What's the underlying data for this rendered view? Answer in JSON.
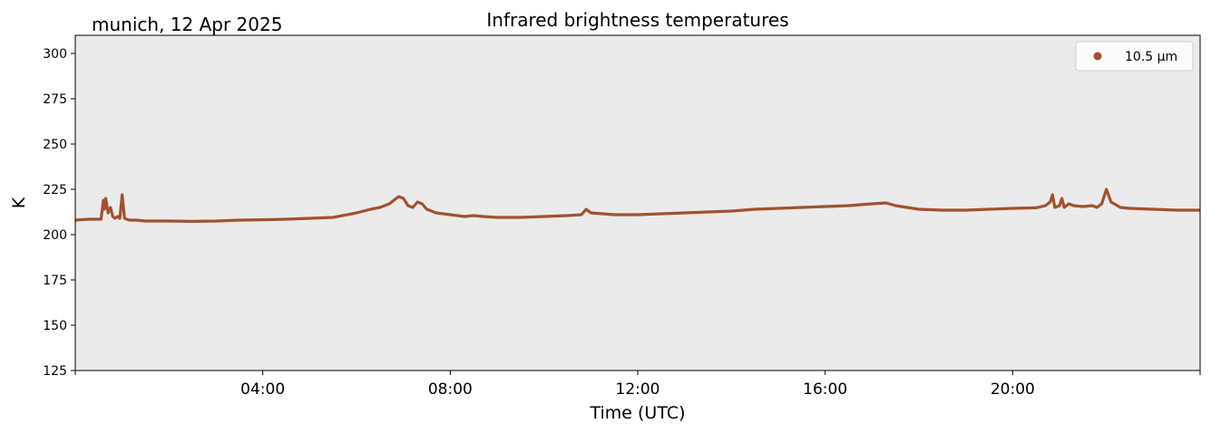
{
  "chart_data": {
    "type": "line",
    "title": "Infrared brightness temperatures",
    "subtitle": "munich, 12 Apr 2025",
    "xlabel": "Time (UTC)",
    "ylabel": "K",
    "xlim_hours": [
      0,
      24
    ],
    "ylim": [
      125,
      310
    ],
    "y_ticks": [
      125,
      150,
      175,
      200,
      225,
      250,
      275,
      300
    ],
    "x_ticks": [
      {
        "hour": 4,
        "label": "04:00"
      },
      {
        "hour": 8,
        "label": "08:00"
      },
      {
        "hour": 12,
        "label": "12:00"
      },
      {
        "hour": 16,
        "label": "16:00"
      },
      {
        "hour": 20,
        "label": "20:00"
      }
    ],
    "grid": false,
    "background_color": "#ebebeb",
    "legend": {
      "position": "top-right",
      "entries": [
        "10.5 µm"
      ]
    },
    "series": [
      {
        "name": "10.5 µm",
        "color": "#a0522d",
        "x_hours": [
          0.0,
          0.3,
          0.55,
          0.6,
          0.62,
          0.65,
          0.7,
          0.75,
          0.8,
          0.85,
          0.9,
          0.95,
          1.0,
          1.05,
          1.1,
          1.15,
          1.3,
          1.5,
          2.0,
          2.5,
          3.0,
          3.5,
          4.0,
          4.5,
          5.0,
          5.5,
          6.0,
          6.3,
          6.5,
          6.7,
          6.8,
          6.9,
          7.0,
          7.1,
          7.2,
          7.3,
          7.4,
          7.5,
          7.7,
          8.0,
          8.3,
          8.5,
          8.7,
          9.0,
          9.5,
          10.0,
          10.5,
          10.8,
          10.9,
          11.0,
          11.5,
          12.0,
          12.5,
          13.0,
          13.5,
          14.0,
          14.5,
          15.0,
          15.5,
          16.0,
          16.5,
          17.0,
          17.3,
          17.5,
          18.0,
          18.5,
          19.0,
          19.5,
          20.0,
          20.5,
          20.7,
          20.8,
          20.85,
          20.9,
          21.0,
          21.05,
          21.1,
          21.2,
          21.3,
          21.5,
          21.7,
          21.8,
          21.9,
          22.0,
          22.1,
          22.3,
          22.5,
          23.0,
          23.5,
          24.0
        ],
        "values": [
          208,
          208.5,
          208.5,
          219,
          214,
          220,
          212,
          215,
          210,
          209,
          210,
          209,
          222,
          209,
          208.5,
          208,
          208,
          207.5,
          207.5,
          207.3,
          207.5,
          208,
          208.2,
          208.5,
          209,
          209.5,
          212,
          214,
          215,
          217,
          219,
          221,
          220,
          216,
          215,
          218,
          217,
          214,
          212,
          211,
          210,
          210.5,
          210,
          209.5,
          209.5,
          210,
          210.5,
          211,
          214,
          212,
          211,
          211,
          211.5,
          212,
          212.5,
          213,
          214,
          214.5,
          215,
          215.5,
          216,
          217,
          217.5,
          216,
          214,
          213.5,
          213.5,
          214,
          214.5,
          214.8,
          216,
          218,
          222,
          215,
          216,
          220,
          215,
          217,
          216,
          215.5,
          216,
          215,
          217,
          225,
          218,
          215,
          214.5,
          214,
          213.5,
          213.5
        ]
      }
    ]
  }
}
